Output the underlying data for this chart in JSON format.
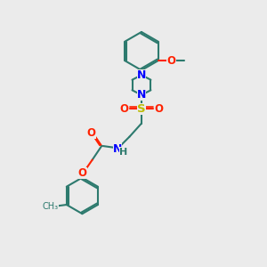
{
  "background_color": "#ebebeb",
  "bond_color": "#2d7a6e",
  "N_color": "#0000ff",
  "O_color": "#ff2200",
  "S_color": "#bbbb00",
  "line_width": 1.5,
  "figsize": [
    3.0,
    3.0
  ],
  "dpi": 100,
  "xlim": [
    0,
    10
  ],
  "ylim": [
    0,
    10
  ]
}
